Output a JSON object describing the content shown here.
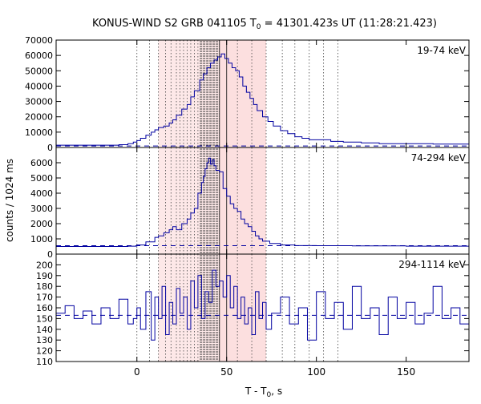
{
  "chart_data": {
    "type": "line",
    "title": {
      "prefix": "KONUS-WIND S2 GRB 041105 T",
      "sub": "0",
      "suffix": " = 41301.423s UT (11:28:21.423)"
    },
    "xlabel": {
      "prefix": "T - T",
      "sub": "0",
      "suffix": ", s"
    },
    "ylabel": "counts / 1024 ms",
    "xlim": [
      -45,
      185
    ],
    "xticks": [
      0,
      50,
      100,
      150
    ],
    "line_color": "#0000a0",
    "shade_color": "#fbd8d8",
    "shaded_intervals": [
      [
        12,
        72
      ],
      [
        46,
        72
      ]
    ],
    "dense_band": [
      35,
      46
    ],
    "solid_vlines": [
      46,
      50
    ],
    "dotted_vlines": [
      0,
      7,
      12,
      16,
      19,
      22,
      24,
      26,
      28,
      30,
      32,
      34,
      56,
      64,
      72,
      81,
      88,
      96,
      104,
      112
    ],
    "panels": [
      {
        "label": "19-74 keV",
        "ylim": [
          0,
          70000
        ],
        "yticks": [
          0,
          10000,
          20000,
          30000,
          40000,
          50000,
          60000,
          70000
        ],
        "background": 1000,
        "x": [
          -45,
          -10,
          -5,
          -2,
          0,
          2,
          5,
          8,
          10,
          12,
          15,
          18,
          20,
          22,
          25,
          28,
          30,
          32,
          35,
          37,
          39,
          41,
          43,
          45,
          47,
          49,
          51,
          53,
          55,
          57,
          59,
          61,
          63,
          65,
          67,
          70,
          73,
          76,
          80,
          84,
          88,
          92,
          96,
          100,
          104,
          108,
          115,
          125,
          135,
          150,
          165,
          185
        ],
        "values": [
          1500,
          1800,
          2500,
          3500,
          4500,
          6000,
          8000,
          10000,
          11500,
          13000,
          14000,
          16000,
          18000,
          21000,
          25000,
          28000,
          33000,
          37000,
          44000,
          48000,
          52000,
          55000,
          57000,
          59000,
          61000,
          58000,
          55000,
          52000,
          50000,
          46000,
          40000,
          36000,
          32000,
          28000,
          24000,
          20000,
          17000,
          14000,
          11000,
          9000,
          7000,
          6000,
          5000,
          5000,
          5000,
          4000,
          3500,
          3000,
          2500,
          2500,
          2200,
          2000
        ]
      },
      {
        "label": "74-294 keV",
        "ylim": [
          0,
          7000
        ],
        "yticks": [
          0,
          1000,
          2000,
          3000,
          4000,
          5000,
          6000
        ],
        "background": 550,
        "x": [
          -45,
          -10,
          -5,
          0,
          5,
          10,
          12,
          15,
          18,
          20,
          22,
          25,
          28,
          30,
          32,
          34,
          36,
          37,
          38,
          39,
          40,
          41,
          42,
          43,
          44,
          46,
          48,
          50,
          52,
          54,
          56,
          58,
          60,
          62,
          64,
          66,
          68,
          70,
          74,
          80,
          88,
          100,
          120,
          150,
          185
        ],
        "values": [
          500,
          500,
          520,
          600,
          800,
          1100,
          1200,
          1400,
          1600,
          1800,
          1600,
          2000,
          2300,
          2700,
          3000,
          4000,
          4700,
          5100,
          5600,
          6000,
          6300,
          5900,
          6200,
          5800,
          5500,
          5400,
          4300,
          3800,
          3300,
          3000,
          2800,
          2300,
          2000,
          1800,
          1500,
          1200,
          1000,
          850,
          700,
          600,
          560,
          550,
          540,
          520,
          500
        ]
      },
      {
        "label": "294-1114 keV",
        "ylim": [
          110,
          210
        ],
        "yticks": [
          110,
          120,
          130,
          140,
          150,
          160,
          170,
          180,
          190,
          200
        ],
        "background": 153,
        "x": [
          -45,
          -40,
          -35,
          -30,
          -25,
          -20,
          -15,
          -10,
          -5,
          -2,
          0,
          2,
          5,
          8,
          10,
          12,
          14,
          16,
          18,
          20,
          22,
          24,
          26,
          28,
          30,
          32,
          34,
          36,
          38,
          40,
          42,
          44,
          46,
          48,
          50,
          52,
          54,
          56,
          58,
          60,
          62,
          64,
          66,
          68,
          70,
          72,
          75,
          80,
          85,
          90,
          95,
          100,
          105,
          110,
          115,
          120,
          125,
          130,
          135,
          140,
          145,
          150,
          155,
          160,
          165,
          170,
          175,
          180,
          185
        ],
        "values": [
          155,
          162,
          150,
          157,
          145,
          160,
          150,
          168,
          145,
          150,
          160,
          140,
          175,
          130,
          170,
          150,
          180,
          135,
          165,
          145,
          178,
          155,
          170,
          140,
          185,
          160,
          190,
          150,
          175,
          165,
          195,
          180,
          185,
          170,
          190,
          160,
          180,
          150,
          170,
          145,
          160,
          135,
          175,
          150,
          165,
          140,
          155,
          170,
          145,
          160,
          130,
          175,
          150,
          165,
          140,
          180,
          150,
          160,
          135,
          170,
          150,
          165,
          145,
          155,
          180,
          150,
          160,
          145,
          150
        ]
      }
    ]
  }
}
